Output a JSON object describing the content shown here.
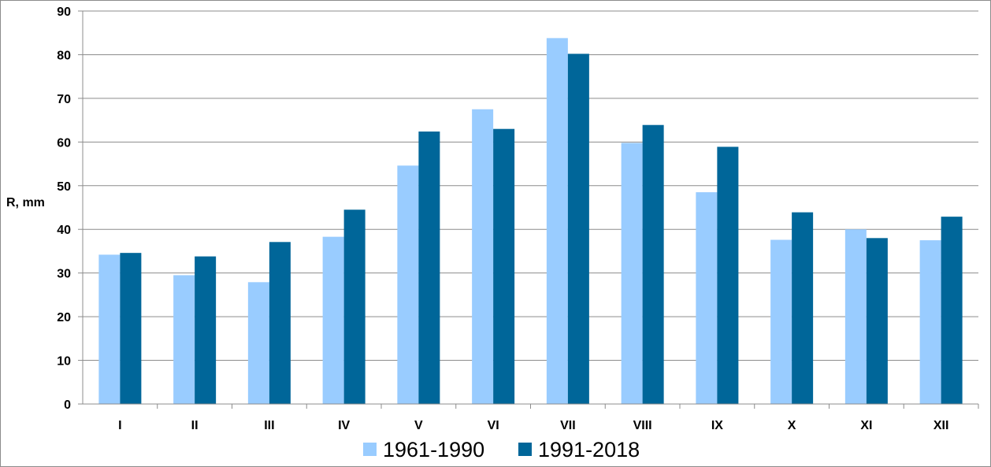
{
  "chart_data": {
    "type": "bar",
    "ylabel": "R, mm",
    "xlabel": "",
    "ylim": [
      0,
      90
    ],
    "yticks": [
      0,
      10,
      20,
      30,
      40,
      50,
      60,
      70,
      80,
      90
    ],
    "grid": true,
    "legend_position": "bottom",
    "categories": [
      "I",
      "II",
      "III",
      "IV",
      "V",
      "VI",
      "VII",
      "VIII",
      "IX",
      "X",
      "XI",
      "XII"
    ],
    "series": [
      {
        "name": "1961-1990",
        "color": "#99ccff",
        "values": [
          34.2,
          29.5,
          27.9,
          38.3,
          54.6,
          67.5,
          83.8,
          59.8,
          48.5,
          37.6,
          40.0,
          37.5
        ]
      },
      {
        "name": "1991-2018",
        "color": "#006699",
        "values": [
          34.6,
          33.8,
          37.1,
          44.5,
          62.4,
          63.0,
          80.2,
          63.9,
          58.9,
          43.9,
          38.0,
          42.9
        ]
      }
    ]
  }
}
